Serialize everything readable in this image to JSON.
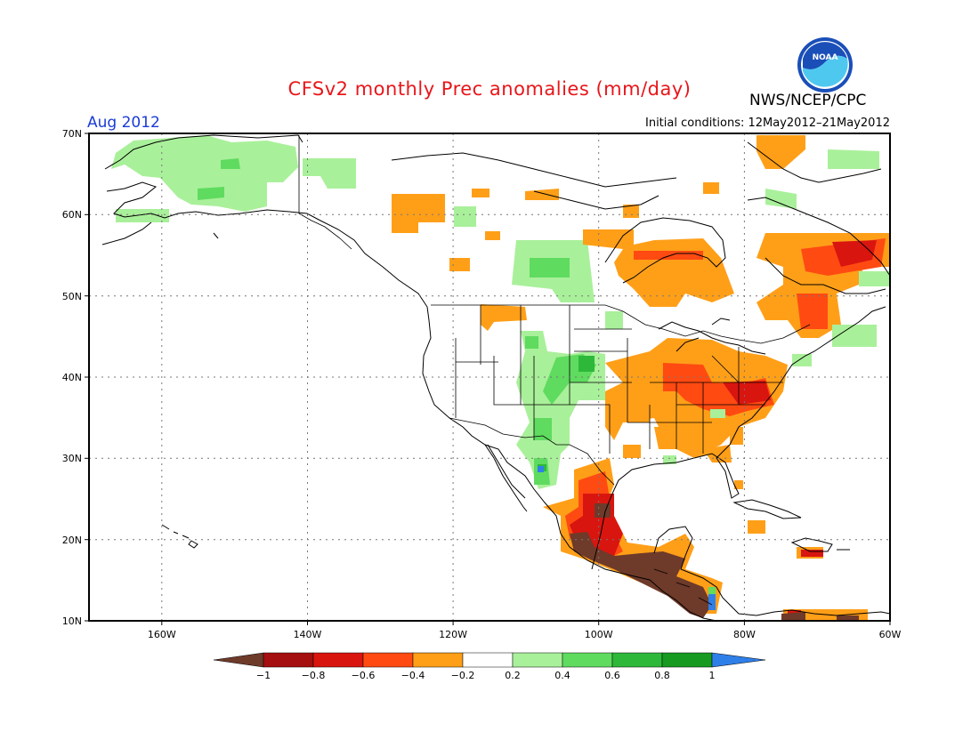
{
  "header": {
    "title": "CFSv2 monthly Prec anomalies (mm/day)",
    "period": "Aug 2012",
    "initial_conditions": "Initial conditions: 12May2012–21May2012",
    "agency": "NWS/NCEP/CPC",
    "logo_text": "NOAA"
  },
  "map": {
    "lat_labels": [
      "70N",
      "60N",
      "50N",
      "40N",
      "30N",
      "20N",
      "10N"
    ],
    "lon_labels": [
      "160W",
      "140W",
      "120W",
      "100W",
      "80W",
      "60W"
    ]
  },
  "legend": {
    "tick_labels": [
      "−1",
      "−0.8",
      "−0.6",
      "−0.4",
      "−0.2",
      "0.2",
      "0.4",
      "0.6",
      "0.8",
      "1"
    ],
    "colors": {
      "below_min": "#6e3a2a",
      "m1_m08": "#a50f0f",
      "m08_m06": "#d9150f",
      "m06_m04": "#ff4a12",
      "m04_m02": "#ff9f18",
      "neutral": "#ffffff",
      "p02_p04": "#a9f09a",
      "p04_p06": "#5fdb5f",
      "p06_p08": "#2db83a",
      "p08_p1": "#169a1f",
      "above_max": "#2f7fe8"
    }
  }
}
